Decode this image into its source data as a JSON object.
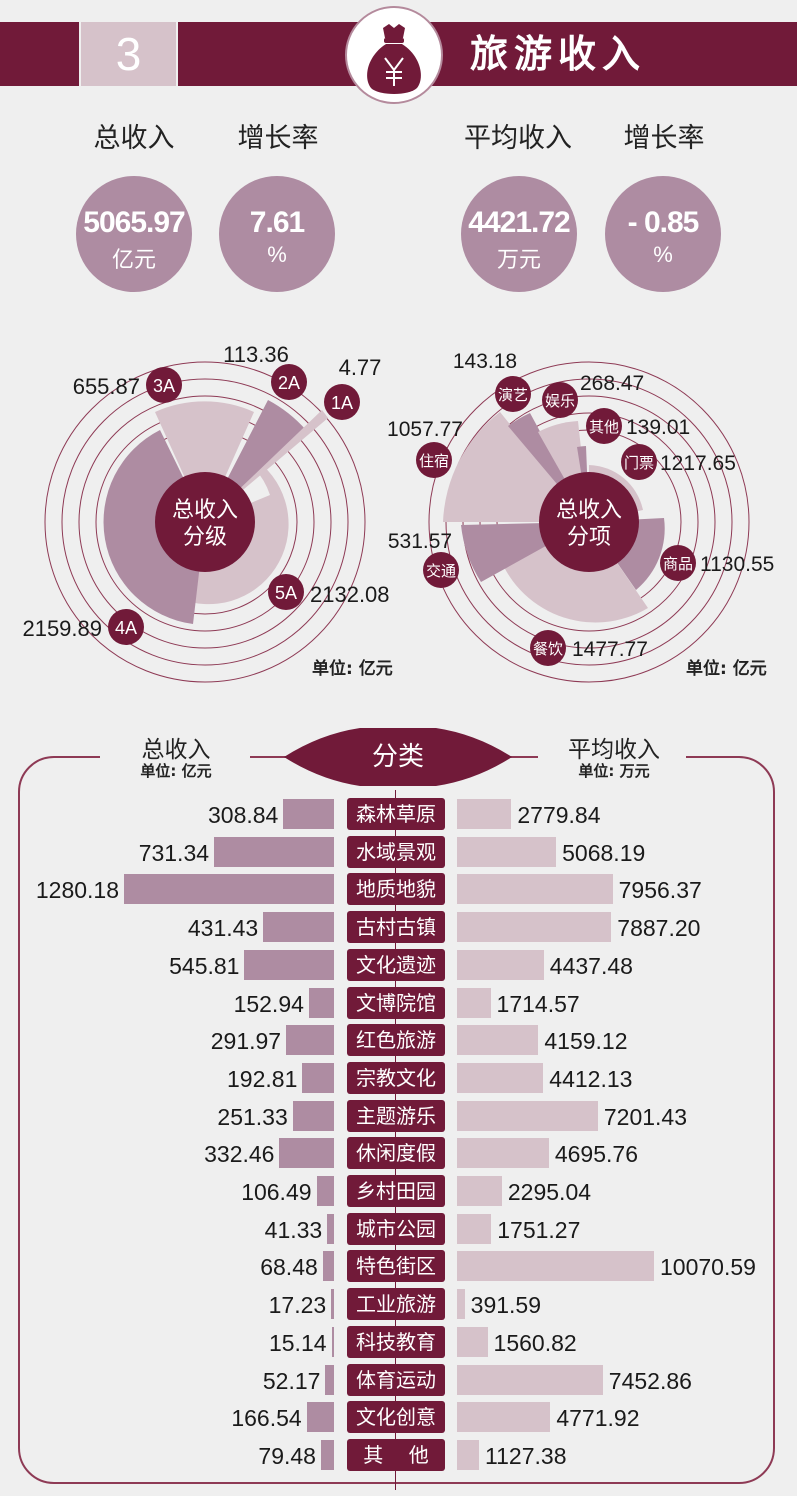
{
  "header": {
    "section_number": "3",
    "title": "旅游收入",
    "icon": "money-bag-yen-icon",
    "colors": {
      "primary": "#711a39",
      "light": "#d6c2ca",
      "mid": "#ae8ca2",
      "background": "#efefef"
    }
  },
  "kpis": [
    {
      "label": "总收入",
      "value": "5065.97",
      "unit": "亿元"
    },
    {
      "label": "增长率",
      "value": "7.61",
      "unit": "%"
    },
    {
      "label": "平均收入",
      "value": "4421.72",
      "unit": "万元"
    },
    {
      "label": "增长率",
      "value": "- 0.85",
      "unit": "%"
    }
  ],
  "rose_grade": {
    "center_line1": "总收入",
    "center_line2": "分级",
    "unit_note": "单位: 亿元",
    "items": [
      {
        "tag": "3A",
        "value": "655.87"
      },
      {
        "tag": "2A",
        "value": "113.36"
      },
      {
        "tag": "1A",
        "value": "4.77"
      },
      {
        "tag": "5A",
        "value": "2132.08"
      },
      {
        "tag": "4A",
        "value": "2159.89"
      }
    ]
  },
  "rose_item": {
    "center_line1": "总收入",
    "center_line2": "分项",
    "unit_note": "单位: 亿元",
    "items": [
      {
        "tag": "演艺",
        "value": "143.18"
      },
      {
        "tag": "娱乐",
        "value": "268.47"
      },
      {
        "tag": "其他",
        "value": "139.01"
      },
      {
        "tag": "门票",
        "value": "1217.65"
      },
      {
        "tag": "商品",
        "value": "1130.55"
      },
      {
        "tag": "餐饮",
        "value": "1477.77"
      },
      {
        "tag": "交通",
        "value": "531.57"
      },
      {
        "tag": "住宿",
        "value": "1057.77"
      }
    ]
  },
  "classification": {
    "left_title": "总收入",
    "left_unit": "单位: 亿元",
    "center_title": "分类",
    "right_title": "平均收入",
    "right_unit": "单位: 万元",
    "rows": [
      {
        "category": "森林草原",
        "total": "308.84",
        "average": "2779.84"
      },
      {
        "category": "水域景观",
        "total": "731.34",
        "average": "5068.19"
      },
      {
        "category": "地质地貌",
        "total": "1280.18",
        "average": "7956.37"
      },
      {
        "category": "古村古镇",
        "total": "431.43",
        "average": "7887.20"
      },
      {
        "category": "文化遗迹",
        "total": "545.81",
        "average": "4437.48"
      },
      {
        "category": "文博院馆",
        "total": "152.94",
        "average": "1714.57"
      },
      {
        "category": "红色旅游",
        "total": "291.97",
        "average": "4159.12"
      },
      {
        "category": "宗教文化",
        "total": "192.81",
        "average": "4412.13"
      },
      {
        "category": "主题游乐",
        "total": "251.33",
        "average": "7201.43"
      },
      {
        "category": "休闲度假",
        "total": "332.46",
        "average": "4695.76"
      },
      {
        "category": "乡村田园",
        "total": "106.49",
        "average": "2295.04"
      },
      {
        "category": "城市公园",
        "total": "41.33",
        "average": "1751.27"
      },
      {
        "category": "特色街区",
        "total": "68.48",
        "average": "10070.59"
      },
      {
        "category": "工业旅游",
        "total": "17.23",
        "average": "391.59"
      },
      {
        "category": "科技教育",
        "total": "15.14",
        "average": "1560.82"
      },
      {
        "category": "体育运动",
        "total": "52.17",
        "average": "7452.86"
      },
      {
        "category": "文化创意",
        "total": "166.54",
        "average": "4771.92"
      },
      {
        "category": "其    他",
        "total": "79.48",
        "average": "1127.38"
      }
    ]
  },
  "chart_data": [
    {
      "type": "pie",
      "title": "总收入分级",
      "subtype": "nightingale-rose",
      "unit": "亿元",
      "categories": [
        "5A",
        "4A",
        "3A",
        "2A",
        "1A"
      ],
      "values": [
        2132.08,
        2159.89,
        655.87,
        113.36,
        4.77
      ]
    },
    {
      "type": "pie",
      "title": "总收入分项",
      "subtype": "nightingale-rose",
      "unit": "亿元",
      "categories": [
        "门票",
        "商品",
        "餐饮",
        "交通",
        "住宿",
        "演艺",
        "娱乐",
        "其他"
      ],
      "values": [
        1217.65,
        1130.55,
        1477.77,
        531.57,
        1057.77,
        143.18,
        268.47,
        139.01
      ]
    },
    {
      "type": "bar",
      "title": "分类",
      "orientation": "horizontal-butterfly",
      "categories": [
        "森林草原",
        "水域景观",
        "地质地貌",
        "古村古镇",
        "文化遗迹",
        "文博院馆",
        "红色旅游",
        "宗教文化",
        "主题游乐",
        "休闲度假",
        "乡村田园",
        "城市公园",
        "特色街区",
        "工业旅游",
        "科技教育",
        "体育运动",
        "文化创意",
        "其他"
      ],
      "series": [
        {
          "name": "总收入 (亿元)",
          "values": [
            308.84,
            731.34,
            1280.18,
            431.43,
            545.81,
            152.94,
            291.97,
            192.81,
            251.33,
            332.46,
            106.49,
            41.33,
            68.48,
            17.23,
            15.14,
            52.17,
            166.54,
            79.48
          ]
        },
        {
          "name": "平均收入 (万元)",
          "values": [
            2779.84,
            5068.19,
            7956.37,
            7887.2,
            4437.48,
            1714.57,
            4159.12,
            4412.13,
            7201.43,
            4695.76,
            2295.04,
            1751.27,
            10070.59,
            391.59,
            1560.82,
            7452.86,
            4771.92,
            1127.38
          ]
        }
      ]
    }
  ]
}
